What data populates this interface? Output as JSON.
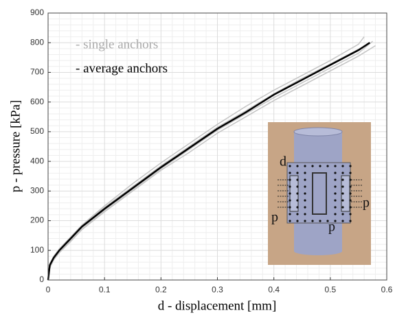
{
  "chart_data": {
    "type": "line",
    "xlabel": "d - displacement [mm]",
    "ylabel": "p - pressure [kPa]",
    "xlim": [
      0,
      0.6
    ],
    "ylim": [
      0,
      900
    ],
    "xticks": [
      0,
      0.1,
      0.2,
      0.3,
      0.4,
      0.5,
      0.6
    ],
    "yticks": [
      0,
      100,
      200,
      300,
      400,
      500,
      600,
      700,
      800,
      900
    ],
    "grid": true,
    "minor_grid": true,
    "legend": "upper left",
    "series": [
      {
        "name": "- single anchors",
        "color": "#c4c4c4",
        "lines": [
          {
            "x": [
              0,
              0.003,
              0.01,
              0.02,
              0.04,
              0.06,
              0.1,
              0.15,
              0.2,
              0.25,
              0.3,
              0.35,
              0.4,
              0.45,
              0.5,
              0.55,
              0.56
            ],
            "values": [
              0,
              55,
              80,
              105,
              145,
              185,
              250,
              325,
              395,
              460,
              525,
              585,
              640,
              690,
              740,
              795,
              820
            ]
          },
          {
            "x": [
              0,
              0.003,
              0.01,
              0.02,
              0.04,
              0.06,
              0.1,
              0.15,
              0.2,
              0.25,
              0.3,
              0.35,
              0.4,
              0.45,
              0.5,
              0.55,
              0.575
            ],
            "values": [
              0,
              45,
              70,
              95,
              135,
              175,
              235,
              305,
              375,
              440,
              505,
              560,
              615,
              665,
              715,
              765,
              805
            ]
          },
          {
            "x": [
              0,
              0.003,
              0.01,
              0.02,
              0.04,
              0.06,
              0.1,
              0.15,
              0.2,
              0.25,
              0.3,
              0.35,
              0.4,
              0.45,
              0.5,
              0.55,
              0.58
            ],
            "values": [
              0,
              40,
              68,
              92,
              130,
              170,
              230,
              300,
              370,
              430,
              495,
              550,
              605,
              655,
              705,
              755,
              790
            ]
          },
          {
            "x": [
              0,
              0.003,
              0.01,
              0.02,
              0.04,
              0.06,
              0.1,
              0.15,
              0.2,
              0.25,
              0.3,
              0.35,
              0.4,
              0.45,
              0.5,
              0.55,
              0.57
            ],
            "values": [
              0,
              52,
              78,
              102,
              142,
              182,
              245,
              315,
              385,
              450,
              515,
              570,
              628,
              680,
              728,
              778,
              798
            ]
          }
        ]
      },
      {
        "name": "- average anchors",
        "color": "#000000",
        "x": [
          0,
          0.003,
          0.01,
          0.02,
          0.04,
          0.06,
          0.1,
          0.15,
          0.2,
          0.25,
          0.3,
          0.35,
          0.4,
          0.45,
          0.5,
          0.55,
          0.57
        ],
        "values": [
          0,
          50,
          75,
          100,
          140,
          180,
          240,
          310,
          380,
          445,
          510,
          565,
          625,
          675,
          725,
          775,
          800
        ]
      }
    ]
  },
  "inset_labels": [
    "d",
    "p",
    "p",
    "p"
  ]
}
